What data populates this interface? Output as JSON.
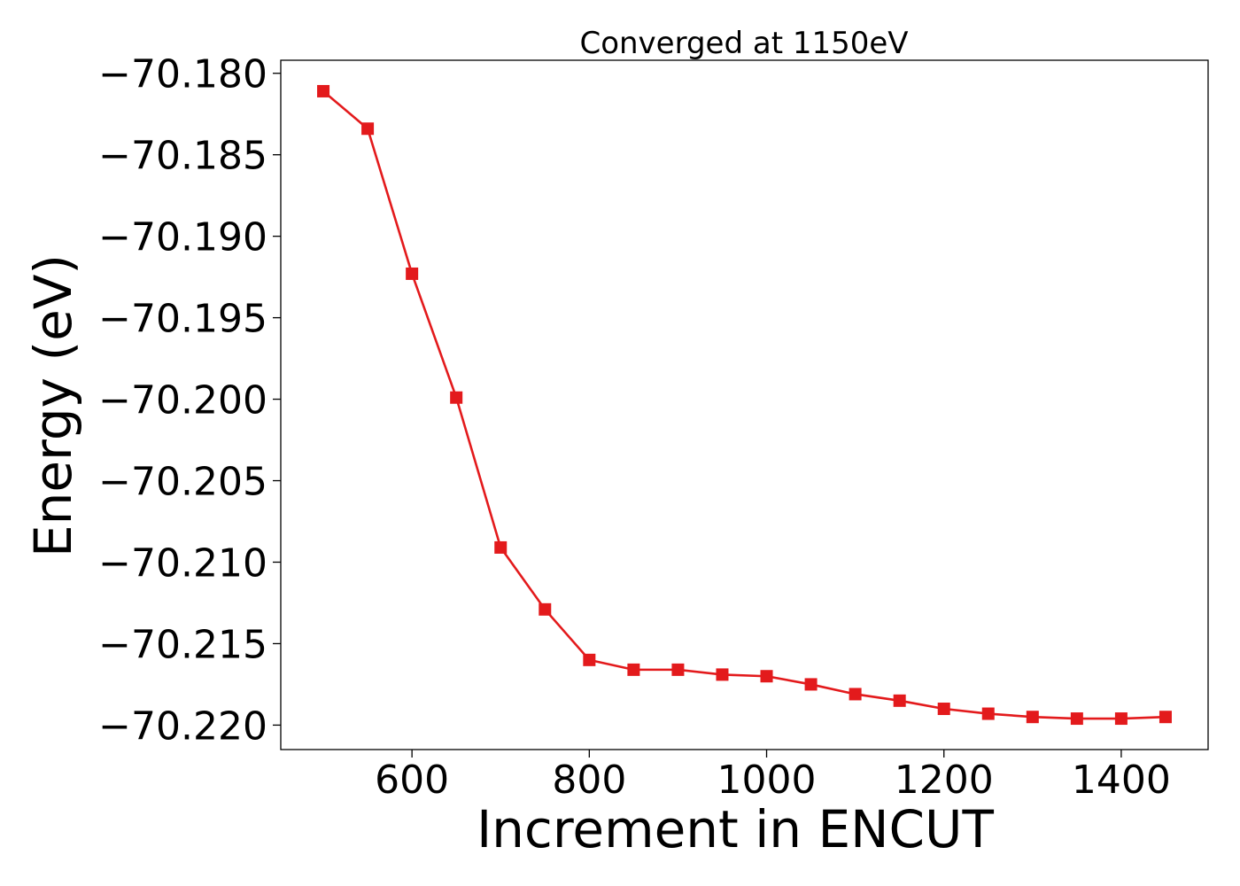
{
  "chart_data": {
    "type": "line",
    "title": "Converged at 1150eV",
    "xlabel": "Increment in ENCUT",
    "ylabel": "Energy (eV)",
    "xlim": [
      452,
      1498
    ],
    "ylim": [
      -70.2215,
      -70.1792
    ],
    "x_ticks": [
      600,
      800,
      1000,
      1200,
      1400
    ],
    "y_ticks": [
      -70.18,
      -70.185,
      -70.19,
      -70.195,
      -70.2,
      -70.205,
      -70.21,
      -70.215,
      -70.22
    ],
    "y_tick_labels": [
      "−70.180",
      "−70.185",
      "−70.190",
      "−70.195",
      "−70.200",
      "−70.205",
      "−70.210",
      "−70.215",
      "−70.220"
    ],
    "grid": false,
    "series": [
      {
        "color": "#e31a1c",
        "marker": "square",
        "x": [
          500,
          550,
          600,
          650,
          700,
          750,
          800,
          850,
          900,
          950,
          1000,
          1050,
          1100,
          1150,
          1200,
          1250,
          1300,
          1350,
          1400,
          1450
        ],
        "y": [
          -70.1811,
          -70.1834,
          -70.1923,
          -70.1999,
          -70.2091,
          -70.2129,
          -70.216,
          -70.2166,
          -70.2166,
          -70.2169,
          -70.217,
          -70.2175,
          -70.2181,
          -70.2185,
          -70.219,
          -70.2193,
          -70.2195,
          -70.2196,
          -70.2196,
          -70.2195
        ]
      }
    ]
  }
}
